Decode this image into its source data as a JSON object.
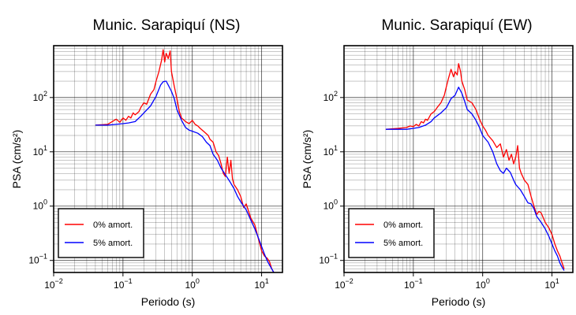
{
  "colors": {
    "undamped": "#ff0000",
    "damped": "#0000ff",
    "grid": "#000000"
  },
  "chart_data": [
    {
      "type": "line",
      "title": "Munic. Sarapiquí (NS)",
      "xlabel": "Periodo (s)",
      "ylabel": "PSA (cm/s²)",
      "xscale": "log",
      "yscale": "log",
      "xlim": [
        0.01,
        20
      ],
      "ylim": [
        0.06,
        900
      ],
      "grid": true,
      "legend_position": "bottom-left",
      "x_ticks": [
        {
          "value": 0.01,
          "base": "10",
          "exp": "−2"
        },
        {
          "value": 0.1,
          "base": "10",
          "exp": "−1"
        },
        {
          "value": 1,
          "base": "10",
          "exp": "0"
        },
        {
          "value": 10,
          "base": "10",
          "exp": "1"
        }
      ],
      "y_ticks": [
        {
          "value": 0.1,
          "base": "10",
          "exp": "−1"
        },
        {
          "value": 1,
          "base": "10",
          "exp": "0"
        },
        {
          "value": 10,
          "base": "10",
          "exp": "1"
        },
        {
          "value": 100,
          "base": "10",
          "exp": "2"
        }
      ],
      "series": [
        {
          "name": "0% amort.",
          "color": "#ff0000",
          "points": [
            [
              0.04,
              31
            ],
            [
              0.06,
              32
            ],
            [
              0.07,
              36
            ],
            [
              0.08,
              40
            ],
            [
              0.09,
              35
            ],
            [
              0.1,
              42
            ],
            [
              0.11,
              38
            ],
            [
              0.12,
              45
            ],
            [
              0.13,
              42
            ],
            [
              0.14,
              52
            ],
            [
              0.15,
              48
            ],
            [
              0.17,
              55
            ],
            [
              0.18,
              65
            ],
            [
              0.2,
              80
            ],
            [
              0.22,
              75
            ],
            [
              0.25,
              115
            ],
            [
              0.28,
              140
            ],
            [
              0.3,
              200
            ],
            [
              0.33,
              300
            ],
            [
              0.36,
              480
            ],
            [
              0.38,
              760
            ],
            [
              0.4,
              450
            ],
            [
              0.42,
              650
            ],
            [
              0.45,
              520
            ],
            [
              0.48,
              720
            ],
            [
              0.5,
              300
            ],
            [
              0.55,
              160
            ],
            [
              0.6,
              95
            ],
            [
              0.65,
              55
            ],
            [
              0.7,
              42
            ],
            [
              0.8,
              36
            ],
            [
              0.9,
              33
            ],
            [
              1.0,
              38
            ],
            [
              1.1,
              32
            ],
            [
              1.2,
              30
            ],
            [
              1.3,
              27
            ],
            [
              1.5,
              23
            ],
            [
              1.7,
              20
            ],
            [
              1.8,
              17
            ],
            [
              2.0,
              15
            ],
            [
              2.2,
              10
            ],
            [
              2.4,
              8.5
            ],
            [
              2.6,
              6
            ],
            [
              2.8,
              4
            ],
            [
              3.0,
              3.5
            ],
            [
              3.2,
              8
            ],
            [
              3.4,
              4
            ],
            [
              3.6,
              7
            ],
            [
              3.8,
              3.2
            ],
            [
              4.0,
              2.5
            ],
            [
              4.5,
              2.0
            ],
            [
              5.0,
              1.5
            ],
            [
              5.5,
              0.95
            ],
            [
              6.0,
              1.1
            ],
            [
              6.5,
              0.8
            ],
            [
              7.0,
              0.6
            ],
            [
              8.0,
              0.45
            ],
            [
              9.0,
              0.25
            ],
            [
              10.0,
              0.15
            ],
            [
              11.0,
              0.12
            ],
            [
              12.0,
              0.11
            ],
            [
              13.0,
              0.095
            ],
            [
              14.0,
              0.07
            ],
            [
              15.0,
              0.06
            ]
          ]
        },
        {
          "name": "5% amort.",
          "color": "#0000ff",
          "points": [
            [
              0.04,
              31
            ],
            [
              0.06,
              31
            ],
            [
              0.08,
              32
            ],
            [
              0.1,
              33
            ],
            [
              0.12,
              34
            ],
            [
              0.15,
              36
            ],
            [
              0.18,
              45
            ],
            [
              0.2,
              52
            ],
            [
              0.25,
              70
            ],
            [
              0.3,
              105
            ],
            [
              0.35,
              170
            ],
            [
              0.38,
              195
            ],
            [
              0.42,
              200
            ],
            [
              0.45,
              170
            ],
            [
              0.5,
              130
            ],
            [
              0.55,
              95
            ],
            [
              0.6,
              60
            ],
            [
              0.7,
              38
            ],
            [
              0.8,
              28
            ],
            [
              0.9,
              25
            ],
            [
              1.0,
              24
            ],
            [
              1.2,
              22
            ],
            [
              1.4,
              19
            ],
            [
              1.6,
              15
            ],
            [
              1.8,
              13
            ],
            [
              2.0,
              9
            ],
            [
              2.3,
              7
            ],
            [
              2.6,
              5
            ],
            [
              3.0,
              3.8
            ],
            [
              3.5,
              2.8
            ],
            [
              4.0,
              2.1
            ],
            [
              4.5,
              1.5
            ],
            [
              5.0,
              1.2
            ],
            [
              6.0,
              0.85
            ],
            [
              7.0,
              0.55
            ],
            [
              8.0,
              0.38
            ],
            [
              9.0,
              0.26
            ],
            [
              10.0,
              0.18
            ],
            [
              11.0,
              0.13
            ],
            [
              12.0,
              0.1
            ],
            [
              13.0,
              0.082
            ],
            [
              14.0,
              0.07
            ],
            [
              15.0,
              0.06
            ]
          ]
        }
      ]
    },
    {
      "type": "line",
      "title": "Munic. Sarapiquí (EW)",
      "xlabel": "Periodo (s)",
      "ylabel": "PSA (cm/s²)",
      "xscale": "log",
      "yscale": "log",
      "xlim": [
        0.01,
        20
      ],
      "ylim": [
        0.06,
        900
      ],
      "grid": true,
      "legend_position": "bottom-left",
      "x_ticks": [
        {
          "value": 0.01,
          "base": "10",
          "exp": "−2"
        },
        {
          "value": 0.1,
          "base": "10",
          "exp": "−1"
        },
        {
          "value": 1,
          "base": "10",
          "exp": "0"
        },
        {
          "value": 10,
          "base": "10",
          "exp": "1"
        }
      ],
      "y_ticks": [
        {
          "value": 0.1,
          "base": "10",
          "exp": "−1"
        },
        {
          "value": 1,
          "base": "10",
          "exp": "0"
        },
        {
          "value": 10,
          "base": "10",
          "exp": "1"
        },
        {
          "value": 100,
          "base": "10",
          "exp": "2"
        }
      ],
      "series": [
        {
          "name": "0% amort.",
          "color": "#ff0000",
          "points": [
            [
              0.04,
              26
            ],
            [
              0.06,
              27
            ],
            [
              0.08,
              28
            ],
            [
              0.09,
              30
            ],
            [
              0.1,
              29
            ],
            [
              0.11,
              32
            ],
            [
              0.12,
              30
            ],
            [
              0.13,
              36
            ],
            [
              0.14,
              34
            ],
            [
              0.15,
              40
            ],
            [
              0.16,
              38
            ],
            [
              0.18,
              50
            ],
            [
              0.2,
              55
            ],
            [
              0.22,
              65
            ],
            [
              0.25,
              80
            ],
            [
              0.28,
              110
            ],
            [
              0.3,
              160
            ],
            [
              0.32,
              220
            ],
            [
              0.35,
              330
            ],
            [
              0.38,
              240
            ],
            [
              0.4,
              300
            ],
            [
              0.43,
              260
            ],
            [
              0.45,
              420
            ],
            [
              0.48,
              300
            ],
            [
              0.5,
              200
            ],
            [
              0.55,
              140
            ],
            [
              0.6,
              90
            ],
            [
              0.7,
              80
            ],
            [
              0.8,
              60
            ],
            [
              0.9,
              40
            ],
            [
              1.0,
              30
            ],
            [
              1.1,
              25
            ],
            [
              1.2,
              20
            ],
            [
              1.4,
              16
            ],
            [
              1.6,
              12
            ],
            [
              1.8,
              14
            ],
            [
              2.0,
              8
            ],
            [
              2.2,
              11
            ],
            [
              2.4,
              7
            ],
            [
              2.6,
              9
            ],
            [
              2.8,
              6
            ],
            [
              3.0,
              8
            ],
            [
              3.2,
              13
            ],
            [
              3.4,
              5
            ],
            [
              3.6,
              4
            ],
            [
              4.0,
              3.0
            ],
            [
              4.5,
              2.5
            ],
            [
              5.0,
              1.5
            ],
            [
              5.5,
              1.0
            ],
            [
              6.0,
              0.7
            ],
            [
              6.5,
              0.8
            ],
            [
              7.0,
              0.75
            ],
            [
              8.0,
              0.5
            ],
            [
              9.0,
              0.4
            ],
            [
              10.0,
              0.3
            ],
            [
              11.0,
              0.2
            ],
            [
              12.0,
              0.15
            ],
            [
              13.0,
              0.12
            ],
            [
              14.0,
              0.09
            ],
            [
              15.0,
              0.07
            ]
          ]
        },
        {
          "name": "5% amort.",
          "color": "#0000ff",
          "points": [
            [
              0.04,
              26
            ],
            [
              0.06,
              26
            ],
            [
              0.08,
              26
            ],
            [
              0.1,
              27
            ],
            [
              0.12,
              28
            ],
            [
              0.15,
              31
            ],
            [
              0.18,
              36
            ],
            [
              0.2,
              42
            ],
            [
              0.25,
              52
            ],
            [
              0.3,
              65
            ],
            [
              0.35,
              95
            ],
            [
              0.4,
              110
            ],
            [
              0.45,
              155
            ],
            [
              0.5,
              120
            ],
            [
              0.55,
              85
            ],
            [
              0.6,
              60
            ],
            [
              0.7,
              50
            ],
            [
              0.8,
              38
            ],
            [
              0.9,
              28
            ],
            [
              1.0,
              20
            ],
            [
              1.2,
              15
            ],
            [
              1.4,
              10
            ],
            [
              1.6,
              6
            ],
            [
              1.8,
              4.5
            ],
            [
              2.0,
              4
            ],
            [
              2.2,
              5
            ],
            [
              2.5,
              4.2
            ],
            [
              2.8,
              3
            ],
            [
              3.0,
              2.5
            ],
            [
              3.5,
              2
            ],
            [
              4.0,
              1.5
            ],
            [
              4.5,
              1.15
            ],
            [
              5.0,
              1.1
            ],
            [
              5.5,
              0.9
            ],
            [
              6.0,
              0.65
            ],
            [
              7.0,
              0.5
            ],
            [
              8.0,
              0.38
            ],
            [
              9.0,
              0.28
            ],
            [
              10.0,
              0.2
            ],
            [
              11.0,
              0.15
            ],
            [
              12.0,
              0.12
            ],
            [
              13.0,
              0.09
            ],
            [
              14.0,
              0.075
            ],
            [
              15.0,
              0.065
            ]
          ]
        }
      ]
    }
  ]
}
